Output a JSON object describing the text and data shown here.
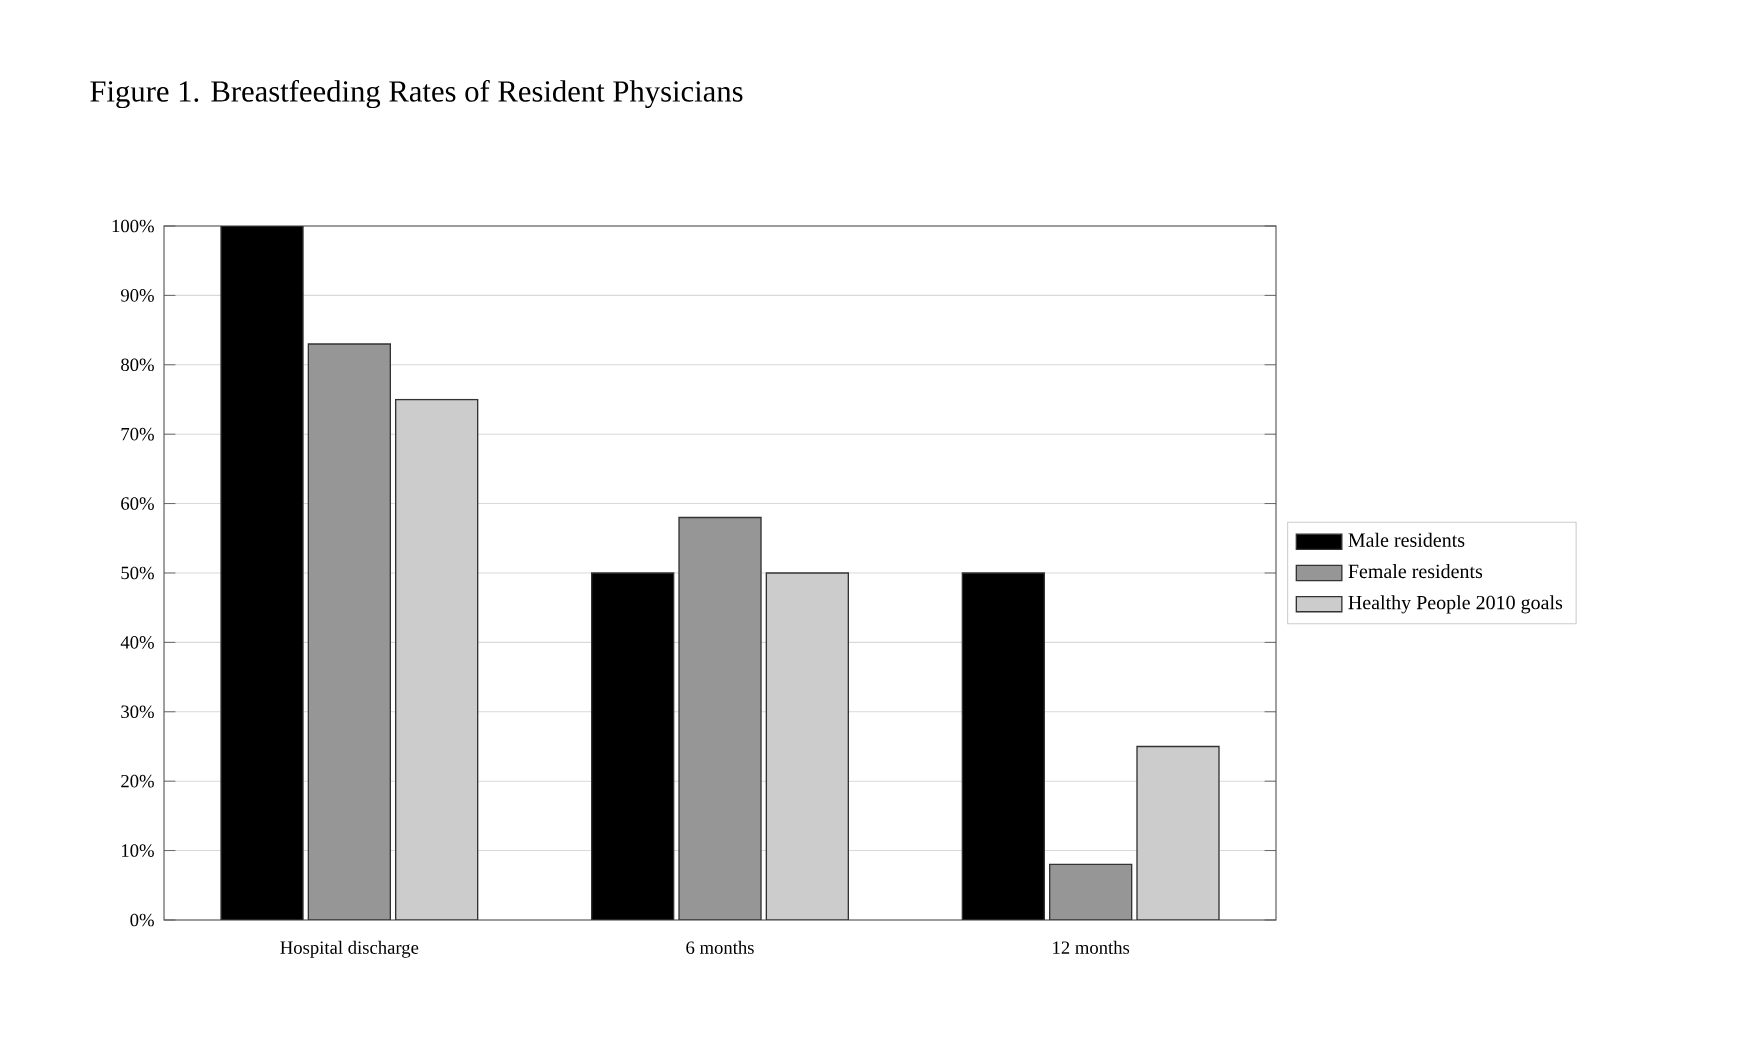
{
  "chart_data": {
    "type": "bar",
    "title": "Figure 1.  Breastfeeding Rates of Resident Physicians",
    "categories": [
      "Hospital discharge",
      "6 months",
      "12 months"
    ],
    "series": [
      {
        "name": "Male residents",
        "color": "#000000",
        "values": [
          100,
          50,
          50
        ]
      },
      {
        "name": "Female residents",
        "color": "#969696",
        "values": [
          83,
          58,
          8
        ]
      },
      {
        "name": "Healthy People 2010 goals",
        "color": "#cccccc",
        "values": [
          75,
          50,
          25
        ]
      }
    ],
    "ylim": [
      0,
      100
    ],
    "yticks": [
      {
        "value": 0,
        "label": "0%"
      },
      {
        "value": 10,
        "label": "10%"
      },
      {
        "value": 20,
        "label": "20%"
      },
      {
        "value": 30,
        "label": "30%"
      },
      {
        "value": 40,
        "label": "40%"
      },
      {
        "value": 50,
        "label": "50%"
      },
      {
        "value": 60,
        "label": "60%"
      },
      {
        "value": 70,
        "label": "70%"
      },
      {
        "value": 80,
        "label": "80%"
      },
      {
        "value": 90,
        "label": "90%"
      },
      {
        "value": 100,
        "label": "100%"
      }
    ],
    "grid": "y",
    "legend": "right"
  }
}
